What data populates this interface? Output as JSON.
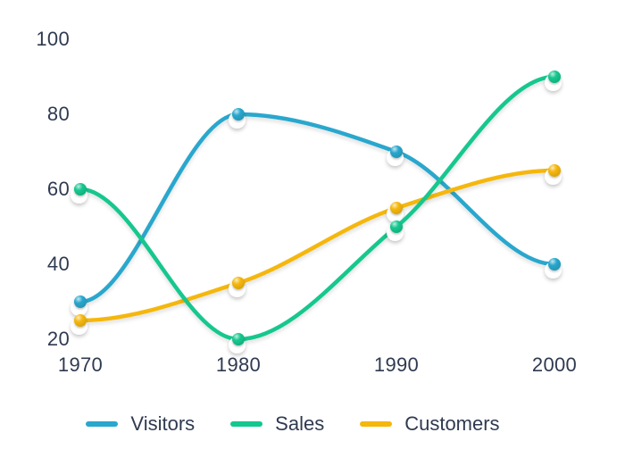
{
  "chart_data": {
    "type": "line",
    "title": "",
    "xlabel": "",
    "ylabel": "",
    "categories": [
      "1970",
      "1980",
      "1990",
      "2000"
    ],
    "series": [
      {
        "name": "Visitors",
        "color": "#29a7cd",
        "values": [
          30,
          80,
          70,
          40
        ]
      },
      {
        "name": "Sales",
        "color": "#13c78e",
        "values": [
          60,
          20,
          50,
          90
        ]
      },
      {
        "name": "Customers",
        "color": "#f5b70b",
        "values": [
          25,
          35,
          55,
          65
        ]
      }
    ],
    "y_ticks": [
      100,
      80,
      60,
      40,
      20
    ],
    "ylim": [
      20,
      100
    ],
    "grid": false,
    "curve": "smooth",
    "legend_position": "bottom"
  },
  "colors": {
    "background": "#ffffff",
    "text": "#2f3a50"
  }
}
